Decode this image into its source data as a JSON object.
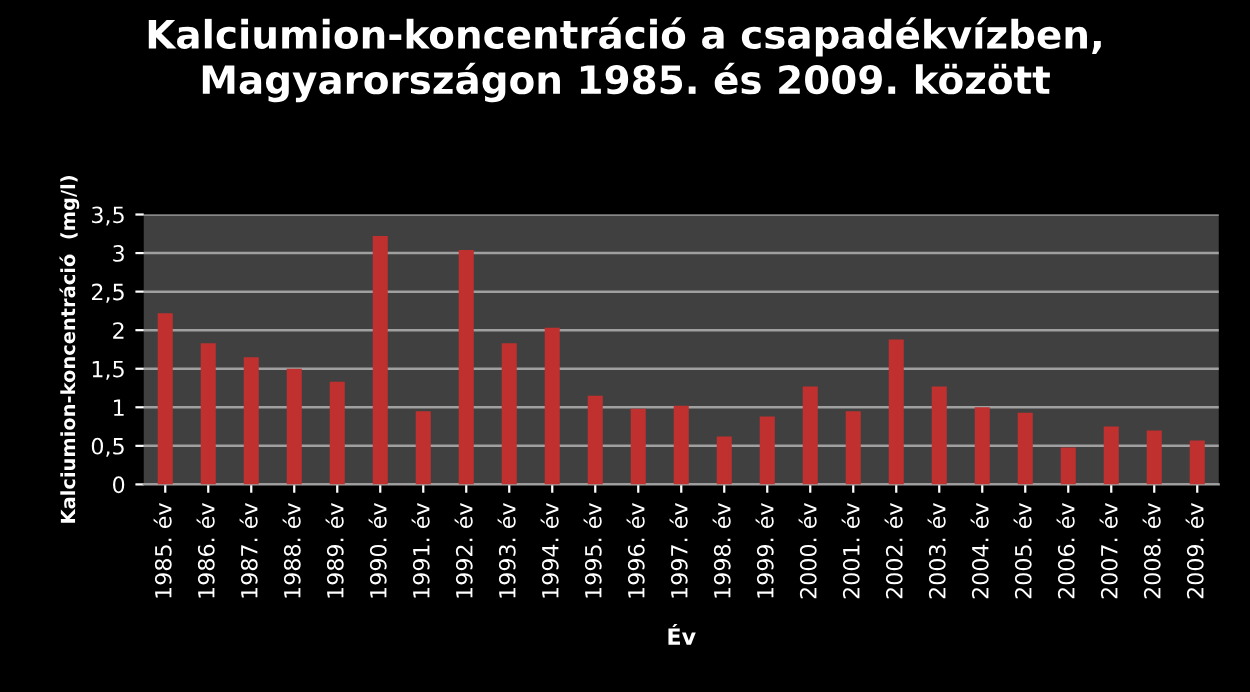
{
  "chart_data": {
    "type": "bar",
    "title": "Kalciumion-koncentráció a csapadékvízben,\nMagyarországon 1985. és 2009. között",
    "xlabel": "Év",
    "ylabel": "Kalciumion-koncentráció  (mg/l)",
    "categories": [
      "1985. év",
      "1986. év",
      "1987. év",
      "1988. év",
      "1989. év",
      "1990. év",
      "1991. év",
      "1992. év",
      "1993. év",
      "1994. év",
      "1995. év",
      "1996. év",
      "1997. év",
      "1998. év",
      "1999. év",
      "2000. év",
      "2001. év",
      "2002. év",
      "2003. év",
      "2004. év",
      "2005. év",
      "2006. év",
      "2007. év",
      "2008. év",
      "2009. év"
    ],
    "values": [
      2.22,
      1.83,
      1.65,
      1.5,
      1.33,
      3.22,
      0.95,
      3.04,
      1.83,
      2.03,
      1.15,
      0.98,
      1.02,
      0.62,
      0.88,
      1.27,
      0.95,
      1.88,
      1.27,
      1.0,
      0.93,
      0.48,
      0.75,
      0.7,
      0.57
    ],
    "color": "#c0302f",
    "ylim": [
      0,
      3.5
    ],
    "yticks": [
      0,
      {
        "value": 0.5,
        "label": "0,5"
      },
      1,
      {
        "value": 1.5,
        "label": "1,5"
      },
      2,
      {
        "value": 2.5,
        "label": "2,5"
      },
      3,
      {
        "value": 3.5,
        "label": "3,5"
      }
    ],
    "grid": "y"
  }
}
